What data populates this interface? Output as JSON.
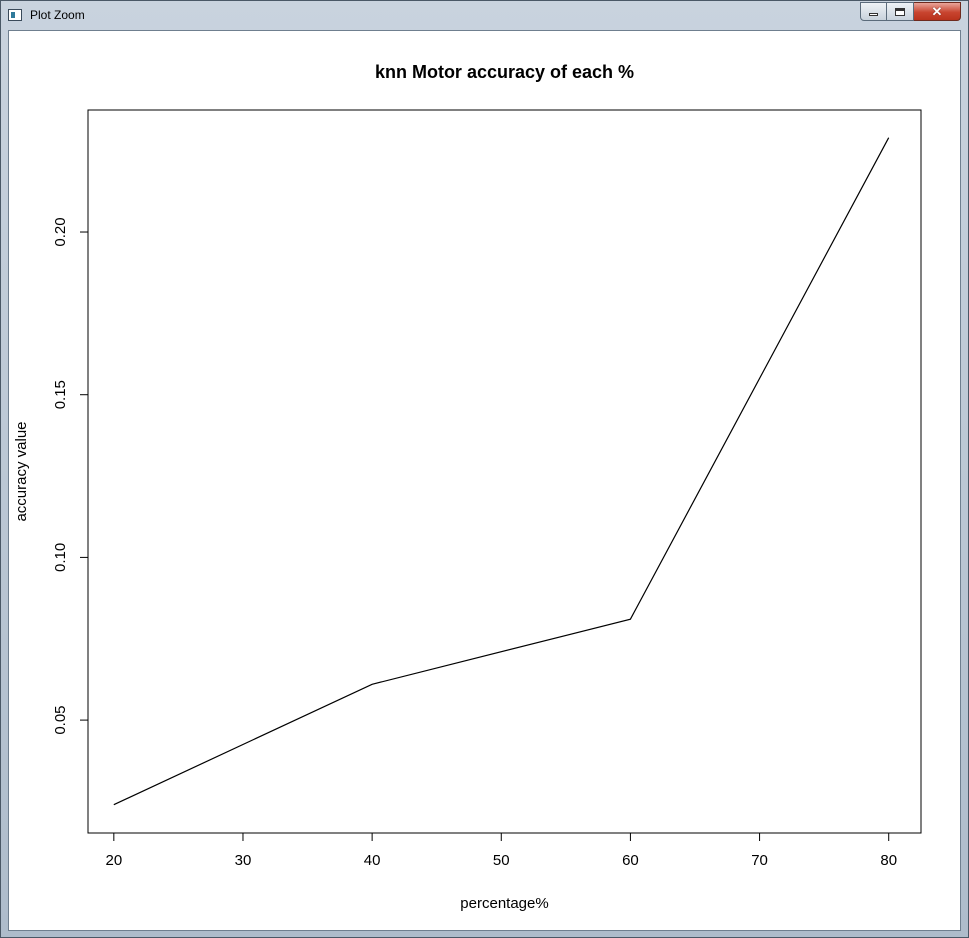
{
  "window": {
    "title": "Plot Zoom",
    "controls": {
      "minimize": "minimize",
      "maximize": "maximize",
      "close": "close"
    }
  },
  "icons": {
    "app": "plot-window-icon",
    "minimize": "minimize-icon",
    "maximize": "maximize-icon",
    "close": "close-icon"
  },
  "chart_data": {
    "type": "line",
    "title": "knn Motor accuracy of each %",
    "xlabel": "percentage%",
    "ylabel": "accuracy value",
    "x": [
      20,
      40,
      60,
      80
    ],
    "series": [
      {
        "values": [
          0.024,
          0.061,
          0.081,
          0.229
        ]
      }
    ],
    "xlim": [
      18,
      82.5
    ],
    "ylim": [
      0.0153,
      0.2375
    ],
    "xticks": [
      20,
      30,
      40,
      50,
      60,
      70,
      80
    ],
    "yticks": [
      0.05,
      0.1,
      0.15,
      0.2
    ],
    "xtick_labels": [
      "20",
      "30",
      "40",
      "50",
      "60",
      "70",
      "80"
    ],
    "ytick_labels": [
      "0.05",
      "0.10",
      "0.15",
      "0.20"
    ],
    "grid": false,
    "legend": "none",
    "line_color": "#000000"
  }
}
